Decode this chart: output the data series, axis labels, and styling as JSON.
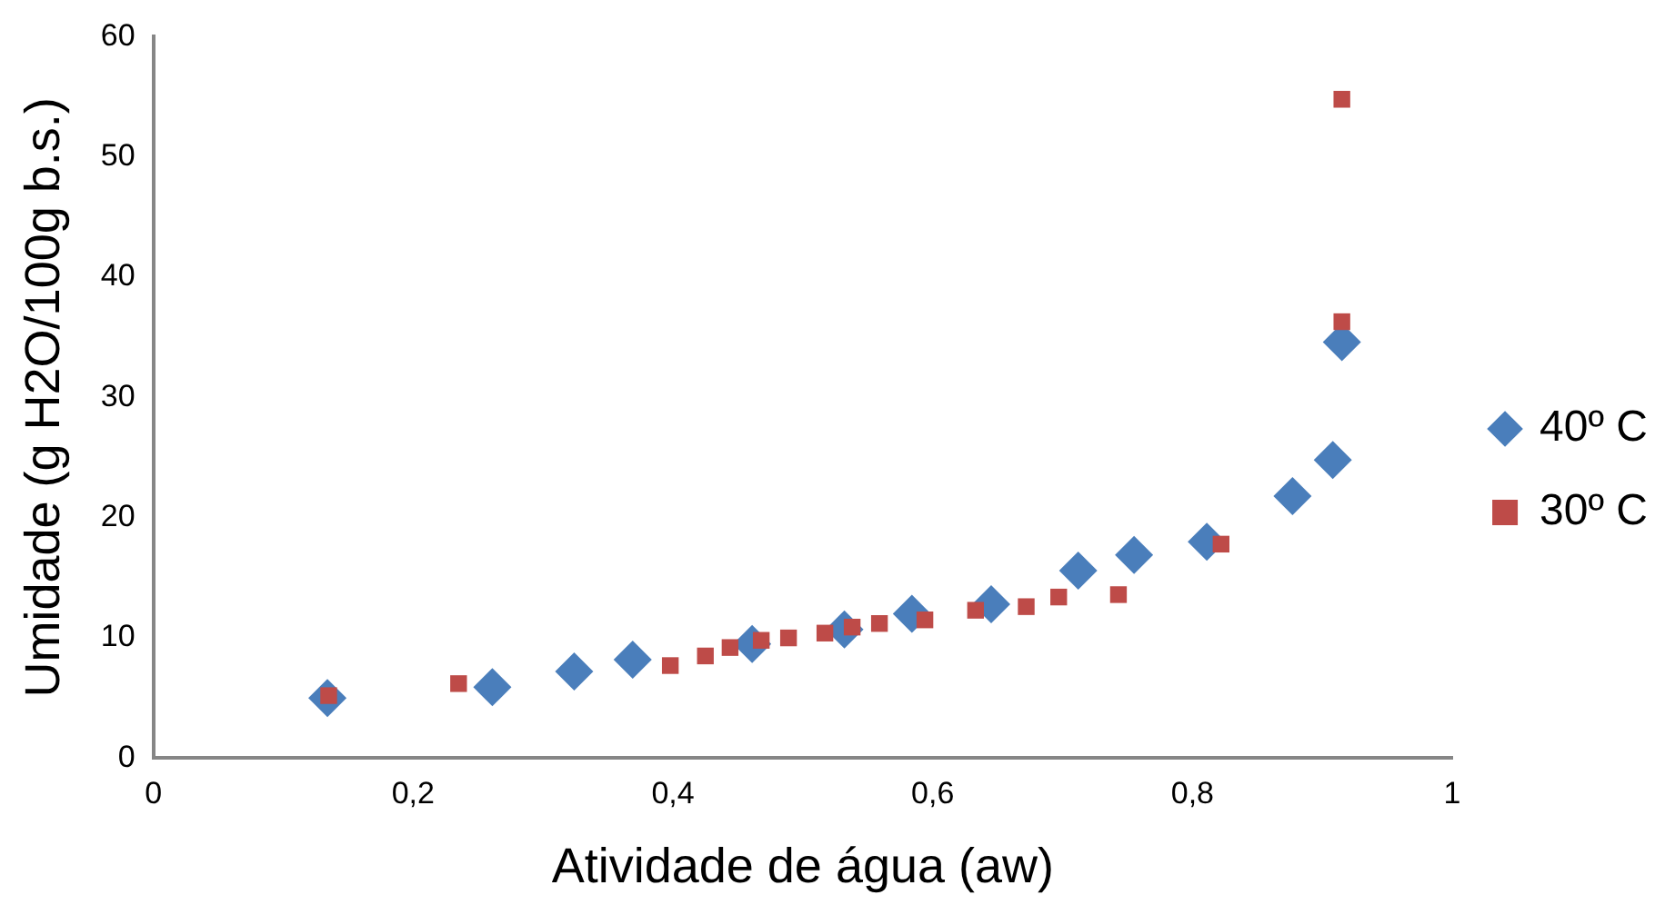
{
  "chart_data": {
    "type": "scatter",
    "xlabel": "Atividade de água (aw)",
    "ylabel": "Umidade (g H2O/100g b.s.)",
    "xlim": [
      0,
      1
    ],
    "xticks": [
      0,
      {
        "value": 0.2,
        "label": "0,2"
      },
      {
        "value": 0.4,
        "label": "0,4"
      },
      {
        "value": 0.6,
        "label": "0,6"
      },
      {
        "value": 0.8,
        "label": "0,8"
      },
      1
    ],
    "ylim": [
      0,
      60
    ],
    "yticks": [
      0,
      10,
      20,
      30,
      40,
      50,
      60
    ],
    "grid": false,
    "legend": "right",
    "series": [
      {
        "name": "40º C",
        "color": "#4a7ebb",
        "marker": "diamond",
        "x": [
          0.134,
          0.261,
          0.324,
          0.369,
          0.461,
          0.532,
          0.584,
          0.645,
          0.712,
          0.755,
          0.811,
          0.877,
          0.908,
          0.915
        ],
        "values": [
          5.0,
          5.9,
          7.2,
          8.2,
          9.5,
          10.7,
          12.0,
          12.8,
          15.6,
          16.9,
          18.0,
          21.8,
          24.8,
          34.6
        ]
      },
      {
        "name": "30º C",
        "color": "#be4b48",
        "marker": "square",
        "x": [
          0.135,
          0.235,
          0.398,
          0.425,
          0.444,
          0.468,
          0.489,
          0.517,
          0.538,
          0.559,
          0.594,
          0.633,
          0.672,
          0.697,
          0.743,
          0.822,
          0.915,
          0.915
        ],
        "values": [
          5.2,
          6.2,
          7.7,
          8.5,
          9.2,
          9.8,
          10.0,
          10.4,
          10.9,
          11.2,
          11.5,
          12.3,
          12.6,
          13.4,
          13.6,
          17.8,
          36.3,
          54.8
        ]
      }
    ]
  }
}
